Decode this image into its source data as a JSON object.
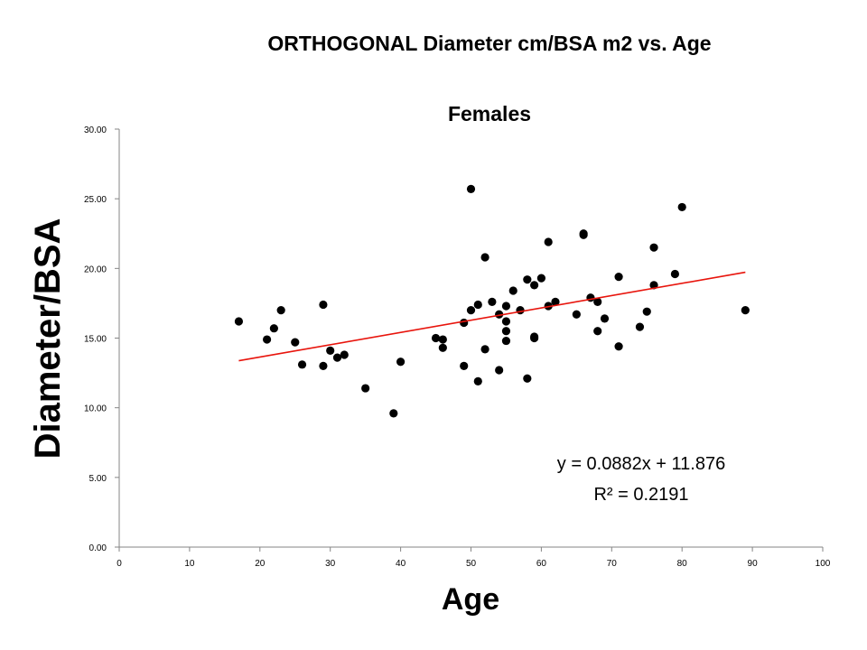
{
  "chart_data": {
    "type": "scatter",
    "title": "ORTHOGONAL  Diameter cm/BSA m2 vs. Age",
    "subtitle": "Females",
    "xlabel": "Age",
    "ylabel": "Diameter/BSA",
    "xlim": [
      0,
      100
    ],
    "ylim": [
      0,
      30
    ],
    "x_ticks": [
      0,
      10,
      20,
      30,
      40,
      50,
      60,
      70,
      80,
      90,
      100
    ],
    "y_ticks": [
      0,
      5,
      10,
      15,
      20,
      25,
      30
    ],
    "x_tick_labels": [
      "0",
      "10",
      "20",
      "30",
      "40",
      "50",
      "60",
      "70",
      "80",
      "90",
      "100"
    ],
    "y_tick_labels": [
      "0.00",
      "5.00",
      "10.00",
      "15.00",
      "20.00",
      "25.00",
      "30.00"
    ],
    "grid": false,
    "legend": "none",
    "point_color": "#000000",
    "trendline_color": "#e8140c",
    "series": [
      {
        "name": "Females",
        "points": [
          [
            17,
            16.2
          ],
          [
            21,
            14.9
          ],
          [
            22,
            15.7
          ],
          [
            23,
            17.0
          ],
          [
            25,
            14.7
          ],
          [
            26,
            13.1
          ],
          [
            29,
            17.4
          ],
          [
            29,
            13.0
          ],
          [
            30,
            14.1
          ],
          [
            31,
            13.6
          ],
          [
            32,
            13.8
          ],
          [
            35,
            11.4
          ],
          [
            39,
            9.6
          ],
          [
            40,
            13.3
          ],
          [
            45,
            15.0
          ],
          [
            46,
            14.9
          ],
          [
            46,
            14.3
          ],
          [
            49,
            16.1
          ],
          [
            49,
            13.0
          ],
          [
            50,
            25.7
          ],
          [
            50,
            17.0
          ],
          [
            51,
            17.4
          ],
          [
            51,
            11.9
          ],
          [
            52,
            20.8
          ],
          [
            52,
            14.2
          ],
          [
            53,
            17.6
          ],
          [
            54,
            16.7
          ],
          [
            54,
            12.7
          ],
          [
            55,
            17.3
          ],
          [
            55,
            16.2
          ],
          [
            55,
            15.5
          ],
          [
            55,
            14.8
          ],
          [
            56,
            18.4
          ],
          [
            57,
            17.0
          ],
          [
            58,
            19.2
          ],
          [
            58,
            12.1
          ],
          [
            59,
            18.8
          ],
          [
            59,
            15.1
          ],
          [
            59,
            15.0
          ],
          [
            60,
            19.3
          ],
          [
            61,
            21.9
          ],
          [
            61,
            17.3
          ],
          [
            62,
            17.6
          ],
          [
            65,
            16.7
          ],
          [
            66,
            22.5
          ],
          [
            66,
            22.4
          ],
          [
            67,
            17.9
          ],
          [
            68,
            17.6
          ],
          [
            68,
            15.5
          ],
          [
            69,
            16.4
          ],
          [
            71,
            19.4
          ],
          [
            71,
            14.4
          ],
          [
            74,
            15.8
          ],
          [
            75,
            16.9
          ],
          [
            76,
            21.5
          ],
          [
            76,
            18.8
          ],
          [
            79,
            19.6
          ],
          [
            80,
            24.4
          ],
          [
            89,
            17.0
          ]
        ]
      }
    ],
    "trendline": {
      "slope": 0.0882,
      "intercept": 11.876,
      "x_range": [
        17,
        89
      ]
    },
    "annotations": {
      "equation": "y = 0.0882x + 11.876",
      "r_squared": "R² = 0.2191"
    }
  }
}
